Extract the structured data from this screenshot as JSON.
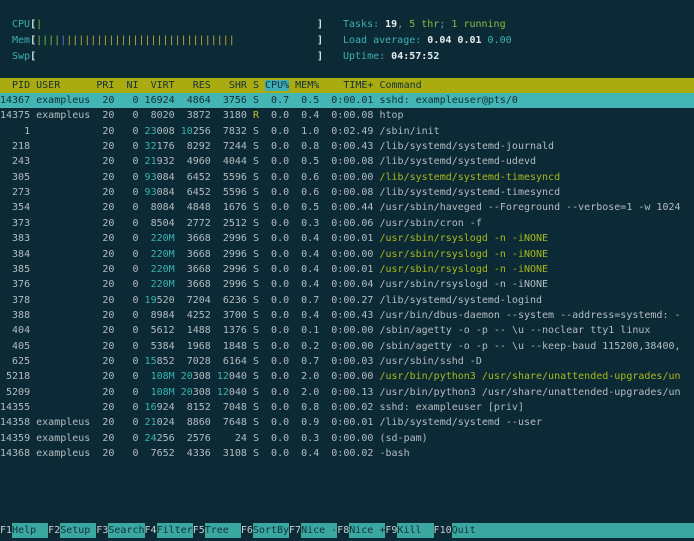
{
  "colors": {
    "background": "#0c2a36",
    "header_bar": "#a9ab11",
    "sort_column": "#3fb0b8",
    "selected_row": "#43b5b5",
    "thread_command": "#a8b818",
    "footer_label": "#3aa8a0"
  },
  "meters": {
    "cpu": {
      "label": "CPU",
      "bars": "|",
      "percent": 1
    },
    "mem": {
      "label": "Mem",
      "green": "||||",
      "blue": "|",
      "orange": "||||||||||||||||||||||||||||"
    },
    "swp": {
      "label": "Swp",
      "bars": ""
    }
  },
  "summary": {
    "tasks_label": "Tasks: ",
    "tasks": "19",
    "thr": "5 thr",
    "running": "1 running",
    "load_label": "Load average: ",
    "load1": "0.04",
    "load5": "0.01",
    "load15": "0.00",
    "uptime_label": "Uptime: ",
    "uptime": "04:57:52"
  },
  "columns": [
    "PID",
    "USER",
    "PRI",
    "NI",
    "VIRT",
    "RES",
    "SHR",
    "S",
    "CPU%",
    "MEM%",
    "TIME+",
    "Command"
  ],
  "sort_column": "CPU%",
  "processes": [
    {
      "pid": "14367",
      "user": "exampleus",
      "pri": "20",
      "ni": "0",
      "virt": "16924",
      "res": "4864",
      "shr": "3756",
      "s": "S",
      "cpu": "0.7",
      "mem": "0.5",
      "time": "0:00.01",
      "cmd": "sshd: exampleuser@pts/0",
      "selected": true
    },
    {
      "pid": "14375",
      "user": "exampleus",
      "pri": "20",
      "ni": "0",
      "virt": "8020",
      "res": "3872",
      "shr": "3180",
      "s": "R",
      "cpu": "0.0",
      "mem": "0.4",
      "time": "0:00.08",
      "cmd": "htop"
    },
    {
      "pid": "1",
      "user": "",
      "pri": "20",
      "ni": "0",
      "virt": "23008",
      "res": "10256",
      "shr": "7832",
      "s": "S",
      "cpu": "0.0",
      "mem": "1.0",
      "time": "0:02.49",
      "cmd": "/sbin/init"
    },
    {
      "pid": "218",
      "user": "",
      "pri": "20",
      "ni": "0",
      "virt": "32176",
      "res": "8292",
      "shr": "7244",
      "s": "S",
      "cpu": "0.0",
      "mem": "0.8",
      "time": "0:00.43",
      "cmd": "/lib/systemd/systemd-journald"
    },
    {
      "pid": "243",
      "user": "",
      "pri": "20",
      "ni": "0",
      "virt": "21932",
      "res": "4960",
      "shr": "4044",
      "s": "S",
      "cpu": "0.0",
      "mem": "0.5",
      "time": "0:00.08",
      "cmd": "/lib/systemd/systemd-udevd"
    },
    {
      "pid": "305",
      "user": "",
      "pri": "20",
      "ni": "0",
      "virt": "93084",
      "res": "6452",
      "shr": "5596",
      "s": "S",
      "cpu": "0.0",
      "mem": "0.6",
      "time": "0:00.00",
      "cmd": "/lib/systemd/systemd-timesyncd",
      "thread": true
    },
    {
      "pid": "273",
      "user": "",
      "pri": "20",
      "ni": "0",
      "virt": "93084",
      "res": "6452",
      "shr": "5596",
      "s": "S",
      "cpu": "0.0",
      "mem": "0.6",
      "time": "0:00.08",
      "cmd": "/lib/systemd/systemd-timesyncd"
    },
    {
      "pid": "354",
      "user": "",
      "pri": "20",
      "ni": "0",
      "virt": "8084",
      "res": "4848",
      "shr": "1676",
      "s": "S",
      "cpu": "0.0",
      "mem": "0.5",
      "time": "0:00.44",
      "cmd": "/usr/sbin/haveged --Foreground --verbose=1 -w 1024"
    },
    {
      "pid": "373",
      "user": "",
      "pri": "20",
      "ni": "0",
      "virt": "8504",
      "res": "2772",
      "shr": "2512",
      "s": "S",
      "cpu": "0.0",
      "mem": "0.3",
      "time": "0:00.06",
      "cmd": "/usr/sbin/cron -f"
    },
    {
      "pid": "383",
      "user": "",
      "pri": "20",
      "ni": "0",
      "virt": "220M",
      "res": "3668",
      "shr": "2996",
      "s": "S",
      "cpu": "0.0",
      "mem": "0.4",
      "time": "0:00.01",
      "cmd": "/usr/sbin/rsyslogd -n -iNONE",
      "thread": true
    },
    {
      "pid": "384",
      "user": "",
      "pri": "20",
      "ni": "0",
      "virt": "220M",
      "res": "3668",
      "shr": "2996",
      "s": "S",
      "cpu": "0.0",
      "mem": "0.4",
      "time": "0:00.00",
      "cmd": "/usr/sbin/rsyslogd -n -iNONE",
      "thread": true
    },
    {
      "pid": "385",
      "user": "",
      "pri": "20",
      "ni": "0",
      "virt": "220M",
      "res": "3668",
      "shr": "2996",
      "s": "S",
      "cpu": "0.0",
      "mem": "0.4",
      "time": "0:00.01",
      "cmd": "/usr/sbin/rsyslogd -n -iNONE",
      "thread": true
    },
    {
      "pid": "376",
      "user": "",
      "pri": "20",
      "ni": "0",
      "virt": "220M",
      "res": "3668",
      "shr": "2996",
      "s": "S",
      "cpu": "0.0",
      "mem": "0.4",
      "time": "0:00.04",
      "cmd": "/usr/sbin/rsyslogd -n -iNONE"
    },
    {
      "pid": "378",
      "user": "",
      "pri": "20",
      "ni": "0",
      "virt": "19520",
      "res": "7204",
      "shr": "6236",
      "s": "S",
      "cpu": "0.0",
      "mem": "0.7",
      "time": "0:00.27",
      "cmd": "/lib/systemd/systemd-logind"
    },
    {
      "pid": "388",
      "user": "",
      "pri": "20",
      "ni": "0",
      "virt": "8984",
      "res": "4252",
      "shr": "3700",
      "s": "S",
      "cpu": "0.0",
      "mem": "0.4",
      "time": "0:00.43",
      "cmd": "/usr/bin/dbus-daemon --system --address=systemd: -"
    },
    {
      "pid": "404",
      "user": "",
      "pri": "20",
      "ni": "0",
      "virt": "5612",
      "res": "1488",
      "shr": "1376",
      "s": "S",
      "cpu": "0.0",
      "mem": "0.1",
      "time": "0:00.00",
      "cmd": "/sbin/agetty -o -p -- \\u --noclear tty1 linux"
    },
    {
      "pid": "405",
      "user": "",
      "pri": "20",
      "ni": "0",
      "virt": "5384",
      "res": "1968",
      "shr": "1848",
      "s": "S",
      "cpu": "0.0",
      "mem": "0.2",
      "time": "0:00.00",
      "cmd": "/sbin/agetty -o -p -- \\u --keep-baud 115200,38400,"
    },
    {
      "pid": "625",
      "user": "",
      "pri": "20",
      "ni": "0",
      "virt": "15852",
      "res": "7028",
      "shr": "6164",
      "s": "S",
      "cpu": "0.0",
      "mem": "0.7",
      "time": "0:00.03",
      "cmd": "/usr/sbin/sshd -D"
    },
    {
      "pid": "5218",
      "user": "",
      "pri": "20",
      "ni": "0",
      "virt": "108M",
      "res": "20308",
      "shr": "12040",
      "s": "S",
      "cpu": "0.0",
      "mem": "2.0",
      "time": "0:00.00",
      "cmd": "/usr/bin/python3 /usr/share/unattended-upgrades/un",
      "thread": true
    },
    {
      "pid": "5209",
      "user": "",
      "pri": "20",
      "ni": "0",
      "virt": "108M",
      "res": "20308",
      "shr": "12040",
      "s": "S",
      "cpu": "0.0",
      "mem": "2.0",
      "time": "0:00.13",
      "cmd": "/usr/bin/python3 /usr/share/unattended-upgrades/un"
    },
    {
      "pid": "14355",
      "user": "",
      "pri": "20",
      "ni": "0",
      "virt": "16924",
      "res": "8152",
      "shr": "7048",
      "s": "S",
      "cpu": "0.0",
      "mem": "0.8",
      "time": "0:00.02",
      "cmd": "sshd: exampleuser [priv]"
    },
    {
      "pid": "14358",
      "user": "exampleus",
      "pri": "20",
      "ni": "0",
      "virt": "21024",
      "res": "8860",
      "shr": "7648",
      "s": "S",
      "cpu": "0.0",
      "mem": "0.9",
      "time": "0:00.01",
      "cmd": "/lib/systemd/systemd --user"
    },
    {
      "pid": "14359",
      "user": "exampleus",
      "pri": "20",
      "ni": "0",
      "virt": "24256",
      "res": "2576",
      "shr": "24",
      "s": "S",
      "cpu": "0.0",
      "mem": "0.3",
      "time": "0:00.00",
      "cmd": "(sd-pam)"
    },
    {
      "pid": "14368",
      "user": "exampleus",
      "pri": "20",
      "ni": "0",
      "virt": "7652",
      "res": "4336",
      "shr": "3108",
      "s": "S",
      "cpu": "0.0",
      "mem": "0.4",
      "time": "0:00.02",
      "cmd": "-bash"
    }
  ],
  "footer": [
    {
      "key": "F1",
      "label": "Help  "
    },
    {
      "key": "F2",
      "label": "Setup "
    },
    {
      "key": "F3",
      "label": "Search"
    },
    {
      "key": "F4",
      "label": "Filter"
    },
    {
      "key": "F5",
      "label": "Tree  "
    },
    {
      "key": "F6",
      "label": "SortBy"
    },
    {
      "key": "F7",
      "label": "Nice -"
    },
    {
      "key": "F8",
      "label": "Nice +"
    },
    {
      "key": "F9",
      "label": "Kill  "
    },
    {
      "key": "F10",
      "label": "Quit"
    }
  ]
}
